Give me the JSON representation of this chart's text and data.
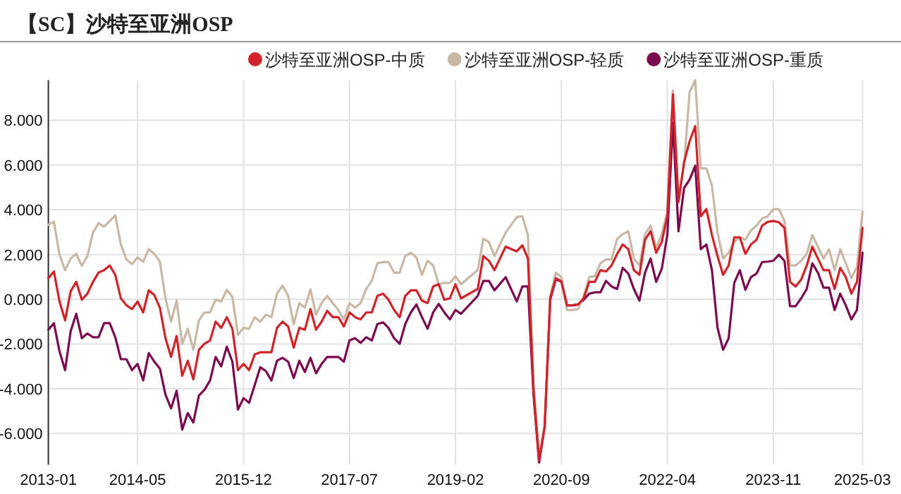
{
  "chart_data": {
    "type": "line",
    "title": "【SC】沙特至亚洲OSP",
    "x": [
      "2013-01",
      "2013-02",
      "2013-03",
      "2013-04",
      "2013-05",
      "2013-06",
      "2013-07",
      "2013-08",
      "2013-09",
      "2013-10",
      "2013-11",
      "2013-12",
      "2014-01",
      "2014-02",
      "2014-03",
      "2014-04",
      "2014-05",
      "2014-06",
      "2014-07",
      "2014-08",
      "2014-09",
      "2014-10",
      "2014-11",
      "2014-12",
      "2015-01",
      "2015-02",
      "2015-03",
      "2015-04",
      "2015-05",
      "2015-06",
      "2015-07",
      "2015-08",
      "2015-09",
      "2015-10",
      "2015-11",
      "2015-12",
      "2016-01",
      "2016-02",
      "2016-03",
      "2016-04",
      "2016-05",
      "2016-06",
      "2016-07",
      "2016-08",
      "2016-09",
      "2016-10",
      "2016-11",
      "2016-12",
      "2017-01",
      "2017-02",
      "2017-03",
      "2017-04",
      "2017-05",
      "2017-06",
      "2017-07",
      "2017-08",
      "2017-09",
      "2017-10",
      "2017-11",
      "2017-12",
      "2018-01",
      "2018-02",
      "2018-03",
      "2018-04",
      "2018-05",
      "2018-06",
      "2018-07",
      "2018-08",
      "2018-09",
      "2018-10",
      "2018-11",
      "2018-12",
      "2019-01",
      "2019-02",
      "2019-03",
      "2019-06",
      "2019-07",
      "2019-08",
      "2019-09",
      "2019-11",
      "2020-01",
      "2020-02",
      "2020-03",
      "2020-04",
      "2020-05",
      "2020-06",
      "2020-07",
      "2020-08",
      "2020-09",
      "2020-10",
      "2020-11",
      "2020-12",
      "2021-01",
      "2021-02",
      "2021-03",
      "2021-04",
      "2021-05",
      "2021-06",
      "2021-07",
      "2021-08",
      "2021-09",
      "2021-10",
      "2021-11",
      "2021-12",
      "2022-01",
      "2022-02",
      "2022-03",
      "2022-04",
      "2022-05",
      "2022-06",
      "2022-07",
      "2022-08",
      "2022-09",
      "2022-10",
      "2022-11",
      "2022-12",
      "2023-01",
      "2023-02",
      "2023-03",
      "2023-04",
      "2023-05",
      "2023-06",
      "2023-07",
      "2023-08",
      "2023-09",
      "2023-10",
      "2023-11",
      "2023-12",
      "2024-01",
      "2024-02",
      "2024-03",
      "2024-04",
      "2024-05",
      "2024-06",
      "2024-07",
      "2024-08",
      "2024-09",
      "2024-10",
      "2024-11",
      "2024-12",
      "2025-01",
      "2025-02",
      "2025-03"
    ],
    "series": [
      {
        "name": "沙特至亚洲OSP-中质",
        "color": "#d0232a",
        "values": [
          0.94,
          1.24,
          -0.1,
          -0.94,
          0.36,
          0.78,
          -0.02,
          0.25,
          0.78,
          1.19,
          1.3,
          1.51,
          1.09,
          0.04,
          -0.27,
          -0.44,
          -0.1,
          -0.59,
          0.4,
          0.19,
          -0.38,
          -1.74,
          -2.58,
          -1.64,
          -3.42,
          -2.75,
          -3.58,
          -2.26,
          -1.99,
          -1.84,
          -1.0,
          -1.28,
          -0.8,
          -1.32,
          -3.17,
          -2.89,
          -3.17,
          -2.47,
          -2.37,
          -2.37,
          -2.37,
          -1.28,
          -1.0,
          -1.22,
          -2.16,
          -1.28,
          -1.36,
          -0.44,
          -1.36,
          -1.0,
          -0.52,
          -0.8,
          -0.8,
          -1.22,
          -0.59,
          -0.8,
          -0.9,
          -0.59,
          -0.59,
          0.15,
          0.25,
          -0.02,
          -0.48,
          -0.8,
          0.15,
          0.4,
          0.4,
          -0.06,
          -0.17,
          0.57,
          0.67,
          -0.02,
          0.04,
          0.67,
          0.04,
          0.46,
          1.93,
          1.72,
          1.3,
          2.35,
          2.14,
          2.41,
          1.82,
          -4.05,
          -7.2,
          -5.7,
          0.04,
          0.94,
          0.8,
          -0.27,
          -0.27,
          -0.23,
          0.04,
          0.78,
          0.78,
          1.3,
          1.24,
          1.51,
          2.03,
          2.45,
          2.24,
          1.3,
          1.09,
          2.66,
          3.04,
          2.08,
          2.56,
          3.71,
          9.16,
          4.34,
          6.12,
          7.07,
          7.74,
          3.71,
          4.03,
          2.87,
          1.93,
          1.09,
          1.51,
          2.77,
          2.77,
          2.03,
          2.45,
          2.66,
          3.29,
          3.46,
          3.5,
          3.44,
          3.19,
          0.78,
          0.57,
          0.88,
          1.51,
          2.35,
          1.82,
          1.3,
          1.3,
          0.46,
          1.4,
          0.99,
          0.25,
          0.78,
          3.19
        ]
      },
      {
        "name": "沙特至亚洲OSP-轻质",
        "color": "#c8b8a6",
        "values": [
          3.33,
          3.46,
          1.99,
          1.3,
          1.82,
          2.03,
          1.49,
          1.93,
          2.98,
          3.4,
          3.25,
          3.5,
          3.75,
          2.45,
          1.78,
          1.57,
          1.87,
          1.68,
          2.24,
          2.03,
          1.68,
          0.04,
          -1.0,
          -0.06,
          -2.0,
          -1.32,
          -2.26,
          -0.94,
          -0.59,
          -0.59,
          -0.02,
          -0.1,
          0.42,
          0.1,
          -1.59,
          -1.28,
          -1.32,
          -0.8,
          -1.0,
          -0.69,
          -0.8,
          0.25,
          0.61,
          0.15,
          -1.11,
          -0.17,
          -0.38,
          0.44,
          -0.69,
          -0.17,
          0.15,
          -0.17,
          -0.48,
          -0.9,
          -0.17,
          -0.38,
          -0.17,
          0.46,
          0.82,
          1.61,
          1.66,
          1.66,
          1.19,
          1.19,
          1.93,
          2.08,
          1.87,
          1.09,
          1.72,
          1.51,
          0.67,
          0.73,
          0.73,
          1.03,
          0.67,
          1.3,
          2.7,
          2.56,
          1.93,
          2.98,
          3.67,
          3.71,
          2.87,
          -3.84,
          -7.0,
          -5.7,
          0.15,
          1.19,
          0.99,
          -0.48,
          -0.48,
          -0.44,
          0.15,
          0.99,
          1.03,
          1.61,
          1.78,
          1.78,
          2.7,
          2.91,
          3.04,
          1.82,
          1.51,
          2.91,
          3.29,
          2.28,
          2.91,
          3.92,
          9.33,
          4.55,
          6.02,
          9.27,
          9.79,
          5.85,
          5.85,
          5.07,
          2.98,
          1.82,
          2.08,
          2.56,
          2.77,
          2.66,
          3.08,
          3.29,
          3.61,
          3.71,
          4.03,
          4.03,
          3.5,
          1.51,
          1.51,
          1.72,
          2.03,
          2.87,
          2.35,
          1.82,
          2.24,
          1.3,
          2.24,
          1.61,
          0.94,
          1.45,
          3.92
        ]
      },
      {
        "name": "沙特至亚洲OSP-重质",
        "color": "#7b0a4e",
        "values": [
          -1.36,
          -1.07,
          -2.33,
          -3.17,
          -1.43,
          -0.65,
          -1.74,
          -1.53,
          -1.7,
          -1.7,
          -1.07,
          -1.07,
          -1.7,
          -2.68,
          -2.68,
          -3.17,
          -2.89,
          -3.63,
          -2.41,
          -2.79,
          -3.1,
          -4.26,
          -4.88,
          -4.09,
          -5.83,
          -5.09,
          -5.51,
          -4.3,
          -4.05,
          -3.63,
          -2.58,
          -3.0,
          -2.12,
          -2.79,
          -4.93,
          -4.42,
          -4.63,
          -3.84,
          -3.04,
          -3.21,
          -3.63,
          -2.75,
          -2.62,
          -2.79,
          -3.52,
          -2.75,
          -3.25,
          -2.62,
          -3.31,
          -2.89,
          -2.58,
          -2.58,
          -2.58,
          -2.79,
          -1.84,
          -1.74,
          -1.95,
          -1.7,
          -1.84,
          -1.11,
          -1.03,
          -1.28,
          -1.74,
          -1.99,
          -1.11,
          -0.59,
          -0.23,
          -0.8,
          -1.32,
          -0.59,
          -0.21,
          -0.59,
          -0.9,
          -0.48,
          -0.65,
          0.15,
          0.82,
          0.82,
          0.4,
          0.99,
          -0.1,
          0.57,
          0.57,
          -4.26,
          -7.3,
          -5.7,
          -0.02,
          0.88,
          0.8,
          -0.27,
          -0.27,
          -0.23,
          -0.02,
          0.25,
          0.31,
          0.31,
          0.82,
          0.57,
          0.46,
          1.4,
          1.15,
          0.46,
          -0.06,
          1.19,
          1.82,
          0.78,
          1.36,
          2.87,
          7.9,
          3.04,
          4.97,
          5.35,
          5.97,
          2.24,
          2.45,
          1.3,
          -1.28,
          -2.26,
          -1.74,
          0.73,
          1.3,
          0.42,
          0.99,
          1.15,
          1.66,
          1.68,
          1.72,
          1.99,
          1.72,
          -0.31,
          -0.31,
          0.04,
          0.46,
          1.61,
          1.19,
          0.52,
          0.52,
          -0.48,
          0.25,
          -0.27,
          -0.9,
          -0.48,
          2.08
        ]
      }
    ],
    "xlim": [
      "2013-01",
      "2025-03"
    ],
    "xticks": [
      "2013-01",
      "2014-05",
      "2015-12",
      "2017-07",
      "2019-02",
      "2020-09",
      "2022-04",
      "2023-11",
      "2025-03"
    ],
    "ylim": [
      -7.4,
      9.8
    ],
    "yticks": [
      {
        "value": -6,
        "label": "-6.000"
      },
      {
        "value": -4,
        "label": "-4.000"
      },
      {
        "value": -2,
        "label": "-2.000"
      },
      {
        "value": 0,
        "label": "0.000"
      },
      {
        "value": 2,
        "label": "2.000"
      },
      {
        "value": 4,
        "label": "4.000"
      },
      {
        "value": 6,
        "label": "6.000"
      },
      {
        "value": 8,
        "label": "8.000"
      }
    ],
    "grid": true,
    "legend": "top right",
    "line_style": "solid"
  }
}
